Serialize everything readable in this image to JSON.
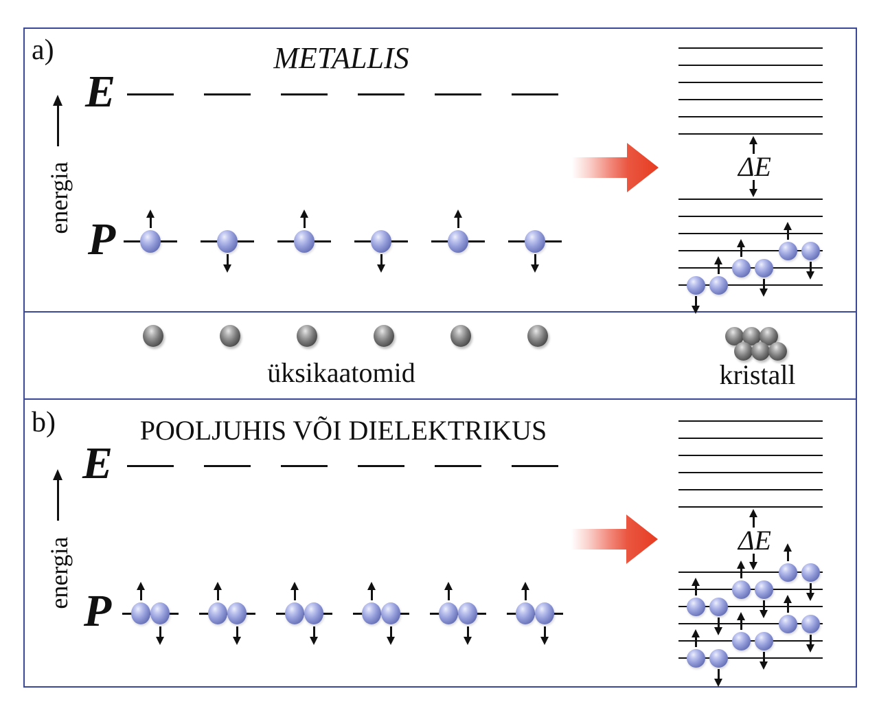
{
  "figure": {
    "panel_a": {
      "label": "a)",
      "title": "METALLIS",
      "energy_axis_label": "energia",
      "upper_level_label": "E",
      "lower_level_label": "P",
      "band_gap_label": "ΔE",
      "level_dash_count": 6,
      "atoms": {
        "count": 6,
        "electrons_per_atom": 1,
        "electron_spins": [
          "up",
          "down",
          "up",
          "down",
          "up",
          "down"
        ]
      },
      "band": {
        "upper_line_count": 6,
        "lower_line_count": 6,
        "electrons": [
          {
            "line": 5,
            "slot": 0,
            "spin": "down"
          },
          {
            "line": 5,
            "slot": 1,
            "spin": "up"
          },
          {
            "line": 4,
            "slot": 2,
            "spin": "up"
          },
          {
            "line": 4,
            "slot": 3,
            "spin": "down"
          },
          {
            "line": 3,
            "slot": 4,
            "spin": "up"
          },
          {
            "line": 3,
            "slot": 5,
            "spin": "down"
          }
        ]
      }
    },
    "strip": {
      "atoms_label": "üksikaatomid",
      "crystal_label": "kristall",
      "single_atom_count": 6,
      "crystal_atom_count": 6
    },
    "panel_b": {
      "label": "b)",
      "title": "POOLJUHIS VÕI DIELEKTRIKUS",
      "energy_axis_label": "energia",
      "upper_level_label": "E",
      "lower_level_label": "P",
      "band_gap_label": "ΔE",
      "level_dash_count": 6,
      "atoms": {
        "count": 6,
        "electrons_per_atom": 2,
        "pair_spins": [
          "up",
          "down"
        ]
      },
      "band": {
        "upper_line_count": 6,
        "lower_line_count": 6,
        "electrons": [
          {
            "line": 0,
            "slot": 4,
            "spin": "up"
          },
          {
            "line": 0,
            "slot": 5,
            "spin": "down"
          },
          {
            "line": 1,
            "slot": 2,
            "spin": "up"
          },
          {
            "line": 1,
            "slot": 3,
            "spin": "down"
          },
          {
            "line": 2,
            "slot": 0,
            "spin": "up"
          },
          {
            "line": 2,
            "slot": 1,
            "spin": "down"
          },
          {
            "line": 3,
            "slot": 4,
            "spin": "up"
          },
          {
            "line": 3,
            "slot": 5,
            "spin": "down"
          },
          {
            "line": 4,
            "slot": 2,
            "spin": "up"
          },
          {
            "line": 4,
            "slot": 3,
            "spin": "down"
          },
          {
            "line": 5,
            "slot": 0,
            "spin": "up"
          },
          {
            "line": 5,
            "slot": 1,
            "spin": "down"
          }
        ]
      }
    },
    "colors": {
      "panel_border": "#3a4798",
      "transition_arrow_red": "#e8462e",
      "electron_blue": "#7d88cd",
      "atom_gray": "#5a5a5a",
      "ink": "#111111"
    }
  }
}
